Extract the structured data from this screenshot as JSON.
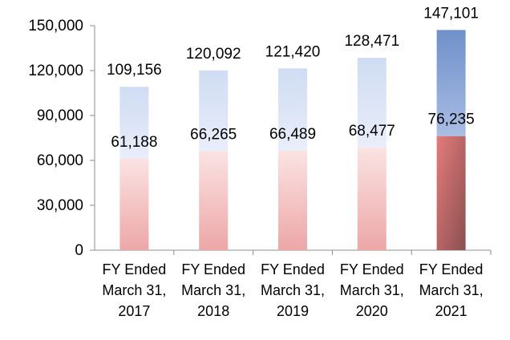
{
  "chart_data": {
    "type": "bar",
    "stacked": true,
    "categories": [
      [
        "FY Ended",
        "March 31,",
        "2017"
      ],
      [
        "FY Ended",
        "March 31,",
        "2018"
      ],
      [
        "FY Ended",
        "March 31,",
        "2019"
      ],
      [
        "FY Ended",
        "March 31,",
        "2020"
      ],
      [
        "FY Ended",
        "March 31,",
        "2021"
      ]
    ],
    "series": [
      {
        "values": [
          61188,
          66265,
          66489,
          68477,
          76235
        ],
        "color": "#e8a0a0"
      },
      {
        "values": [
          47968,
          53827,
          54931,
          59994,
          70866
        ],
        "color": "#b8cbea"
      }
    ],
    "data_labels_lower": [
      "61,188",
      "66,265",
      "66,489",
      "68,477",
      "76,235"
    ],
    "data_labels_total": [
      "109,156",
      "120,092",
      "121,420",
      "128,471",
      "147,101"
    ],
    "totals": [
      109156,
      120092,
      121420,
      128471,
      147101
    ],
    "yticks": [
      "0",
      "30,000",
      "60,000",
      "90,000",
      "120,000",
      "150,000"
    ],
    "ytick_values": [
      0,
      30000,
      60000,
      90000,
      120000,
      150000
    ],
    "ylim": [
      0,
      150000
    ],
    "highlight_last_bar": true,
    "grid": false,
    "legend": "none",
    "title": "",
    "xlabel": "",
    "ylabel": ""
  }
}
